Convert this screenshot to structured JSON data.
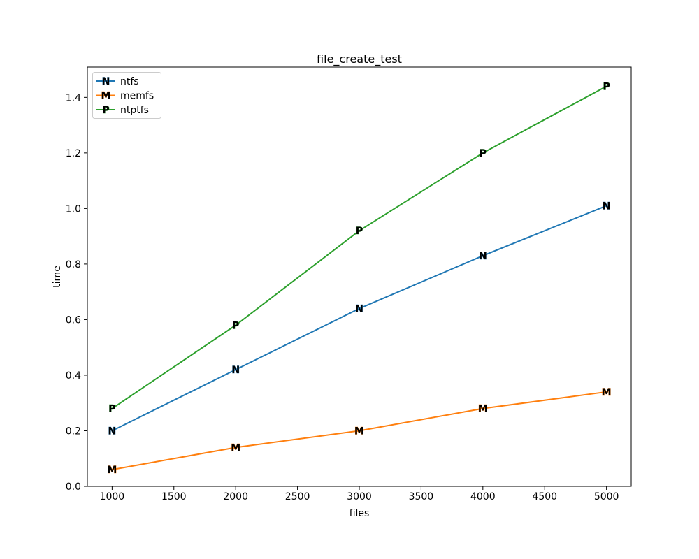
{
  "chart_data": {
    "type": "line",
    "title": "file_create_test",
    "xlabel": "files",
    "ylabel": "time",
    "x": [
      1000,
      2000,
      3000,
      4000,
      5000
    ],
    "series": [
      {
        "name": "ntfs",
        "marker": "N",
        "color": "#1f77b4",
        "values": [
          0.2,
          0.42,
          0.64,
          0.83,
          1.01
        ]
      },
      {
        "name": "memfs",
        "marker": "M",
        "color": "#ff7f0e",
        "values": [
          0.06,
          0.14,
          0.2,
          0.28,
          0.34
        ]
      },
      {
        "name": "ntptfs",
        "marker": "P",
        "color": "#2ca02c",
        "values": [
          0.28,
          0.58,
          0.92,
          1.2,
          1.44
        ]
      }
    ],
    "xlim": [
      800,
      5200
    ],
    "ylim": [
      0,
      1.509
    ],
    "xticks": {
      "values": [
        1000,
        1500,
        2000,
        2500,
        3000,
        3500,
        4000,
        4500,
        5000
      ],
      "labels": [
        "1000",
        "1500",
        "2000",
        "2500",
        "3000",
        "3500",
        "4000",
        "4500",
        "5000"
      ]
    },
    "yticks": {
      "values": [
        0.0,
        0.2,
        0.4,
        0.6,
        0.8,
        1.0,
        1.2,
        1.4
      ],
      "labels": [
        "0.0",
        "0.2",
        "0.4",
        "0.6",
        "0.8",
        "1.0",
        "1.2",
        "1.4"
      ]
    },
    "grid": false,
    "legend": {
      "position": "upper left",
      "entries": [
        "ntfs",
        "memfs",
        "ntptfs"
      ]
    },
    "colors": {
      "background": "#ffffff",
      "spine": "#000000",
      "legend_border": "#cccccc"
    }
  }
}
